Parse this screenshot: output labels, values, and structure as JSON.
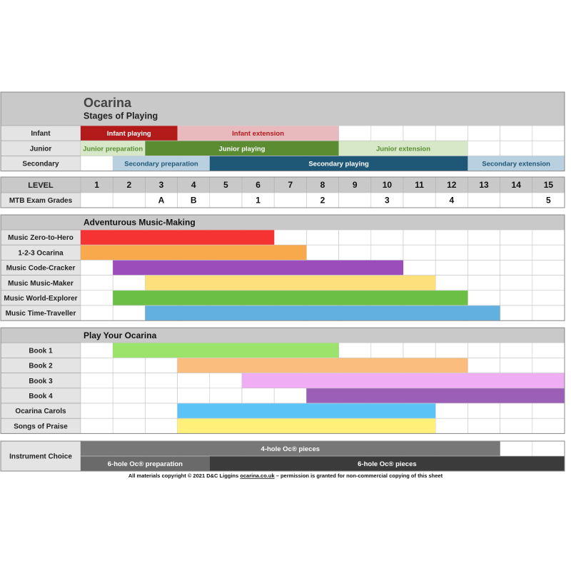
{
  "header": {
    "title": "Ocarina",
    "subtitle": "Stages of Playing"
  },
  "stages": {
    "rows": [
      {
        "label": "Infant",
        "bars": [
          {
            "text": "Infant playing",
            "from": 1,
            "to": 3,
            "color": "#b31b1b",
            "text_color": "#ffffff"
          },
          {
            "text": "Infant extension",
            "from": 4,
            "to": 8,
            "color": "#e8b9bd",
            "text_color": "#b31b1b"
          }
        ]
      },
      {
        "label": "Junior",
        "bars": [
          {
            "text": "Junior preparation",
            "from": 1,
            "to": 2,
            "color": "#d6e8c8",
            "text_color": "#5b8c32"
          },
          {
            "text": "Junior playing",
            "from": 3,
            "to": 8,
            "color": "#5b8c32",
            "text_color": "#ffffff"
          },
          {
            "text": "Junior extension",
            "from": 9,
            "to": 12,
            "color": "#d6e8c8",
            "text_color": "#5b8c32"
          }
        ]
      },
      {
        "label": "Secondary",
        "bars": [
          {
            "text": "Secondary preparation",
            "from": 2,
            "to": 4,
            "color": "#b9d0e0",
            "text_color": "#1f5877"
          },
          {
            "text": "Secondary playing",
            "from": 5,
            "to": 12,
            "color": "#1f5877",
            "text_color": "#ffffff"
          },
          {
            "text": "Secondary extension",
            "from": 13,
            "to": 15,
            "color": "#b9d0e0",
            "text_color": "#1f5877"
          }
        ]
      }
    ]
  },
  "levels": {
    "label": "LEVEL",
    "values": [
      1,
      2,
      3,
      4,
      5,
      6,
      7,
      8,
      9,
      10,
      11,
      12,
      13,
      14,
      15
    ]
  },
  "grades": {
    "label": "MTB Exam Grades",
    "marks": [
      {
        "level": 3,
        "text": "A"
      },
      {
        "level": 4,
        "text": "B"
      },
      {
        "level": 6,
        "text": "1"
      },
      {
        "level": 8,
        "text": "2"
      },
      {
        "level": 10,
        "text": "3"
      },
      {
        "level": 12,
        "text": "4"
      },
      {
        "level": 15,
        "text": "5"
      }
    ]
  },
  "sections": [
    {
      "title": "Adventurous Music-Making",
      "rows": [
        {
          "label": "Music Zero-to-Hero",
          "from": 1,
          "to": 6,
          "color": "#f53333"
        },
        {
          "label": "1-2-3 Ocarina",
          "from": 1,
          "to": 7,
          "color": "#f8a94c"
        },
        {
          "label": "Music Code-Cracker",
          "from": 2,
          "to": 10,
          "color": "#9b4dbb"
        },
        {
          "label": "Music Music-Maker",
          "from": 3,
          "to": 11,
          "color": "#fde07c"
        },
        {
          "label": "Music World-Explorer",
          "from": 2,
          "to": 12,
          "color": "#6cbf45"
        },
        {
          "label": "Music Time-Traveller",
          "from": 3,
          "to": 13,
          "color": "#62b0e0"
        }
      ]
    },
    {
      "title": "Play Your Ocarina",
      "rows": [
        {
          "label": "Book 1",
          "from": 2,
          "to": 8,
          "color": "#9be36a"
        },
        {
          "label": "Book 2",
          "from": 4,
          "to": 12,
          "color": "#fbbd7e"
        },
        {
          "label": "Book 3",
          "from": 6,
          "to": 15,
          "color": "#efadf4"
        },
        {
          "label": "Book 4",
          "from": 8,
          "to": 15,
          "color": "#9b5fb8"
        },
        {
          "label": "Ocarina Carols",
          "from": 4,
          "to": 11,
          "color": "#5bc3f5"
        },
        {
          "label": "Songs of Praise",
          "from": 4,
          "to": 11,
          "color": "#fff07a"
        }
      ]
    }
  ],
  "instrument": {
    "label": "Instrument Choice",
    "upper": [
      {
        "text": "4-hole Oc® pieces",
        "from": 1,
        "to": 13,
        "color": "#777777"
      }
    ],
    "lower": [
      {
        "text": "6-hole Oc® preparation",
        "from": 1,
        "to": 4,
        "color": "#6a6a6a"
      },
      {
        "text": "6-hole Oc® pieces",
        "from": 5,
        "to": 15,
        "color": "#3b3b3b"
      }
    ]
  },
  "footer": {
    "before": "All materials copyright © 2021 D&C Liggins ",
    "link": "ocarina.co.uk",
    "after": " – permission is granted for non-commercial copying of this sheet"
  }
}
